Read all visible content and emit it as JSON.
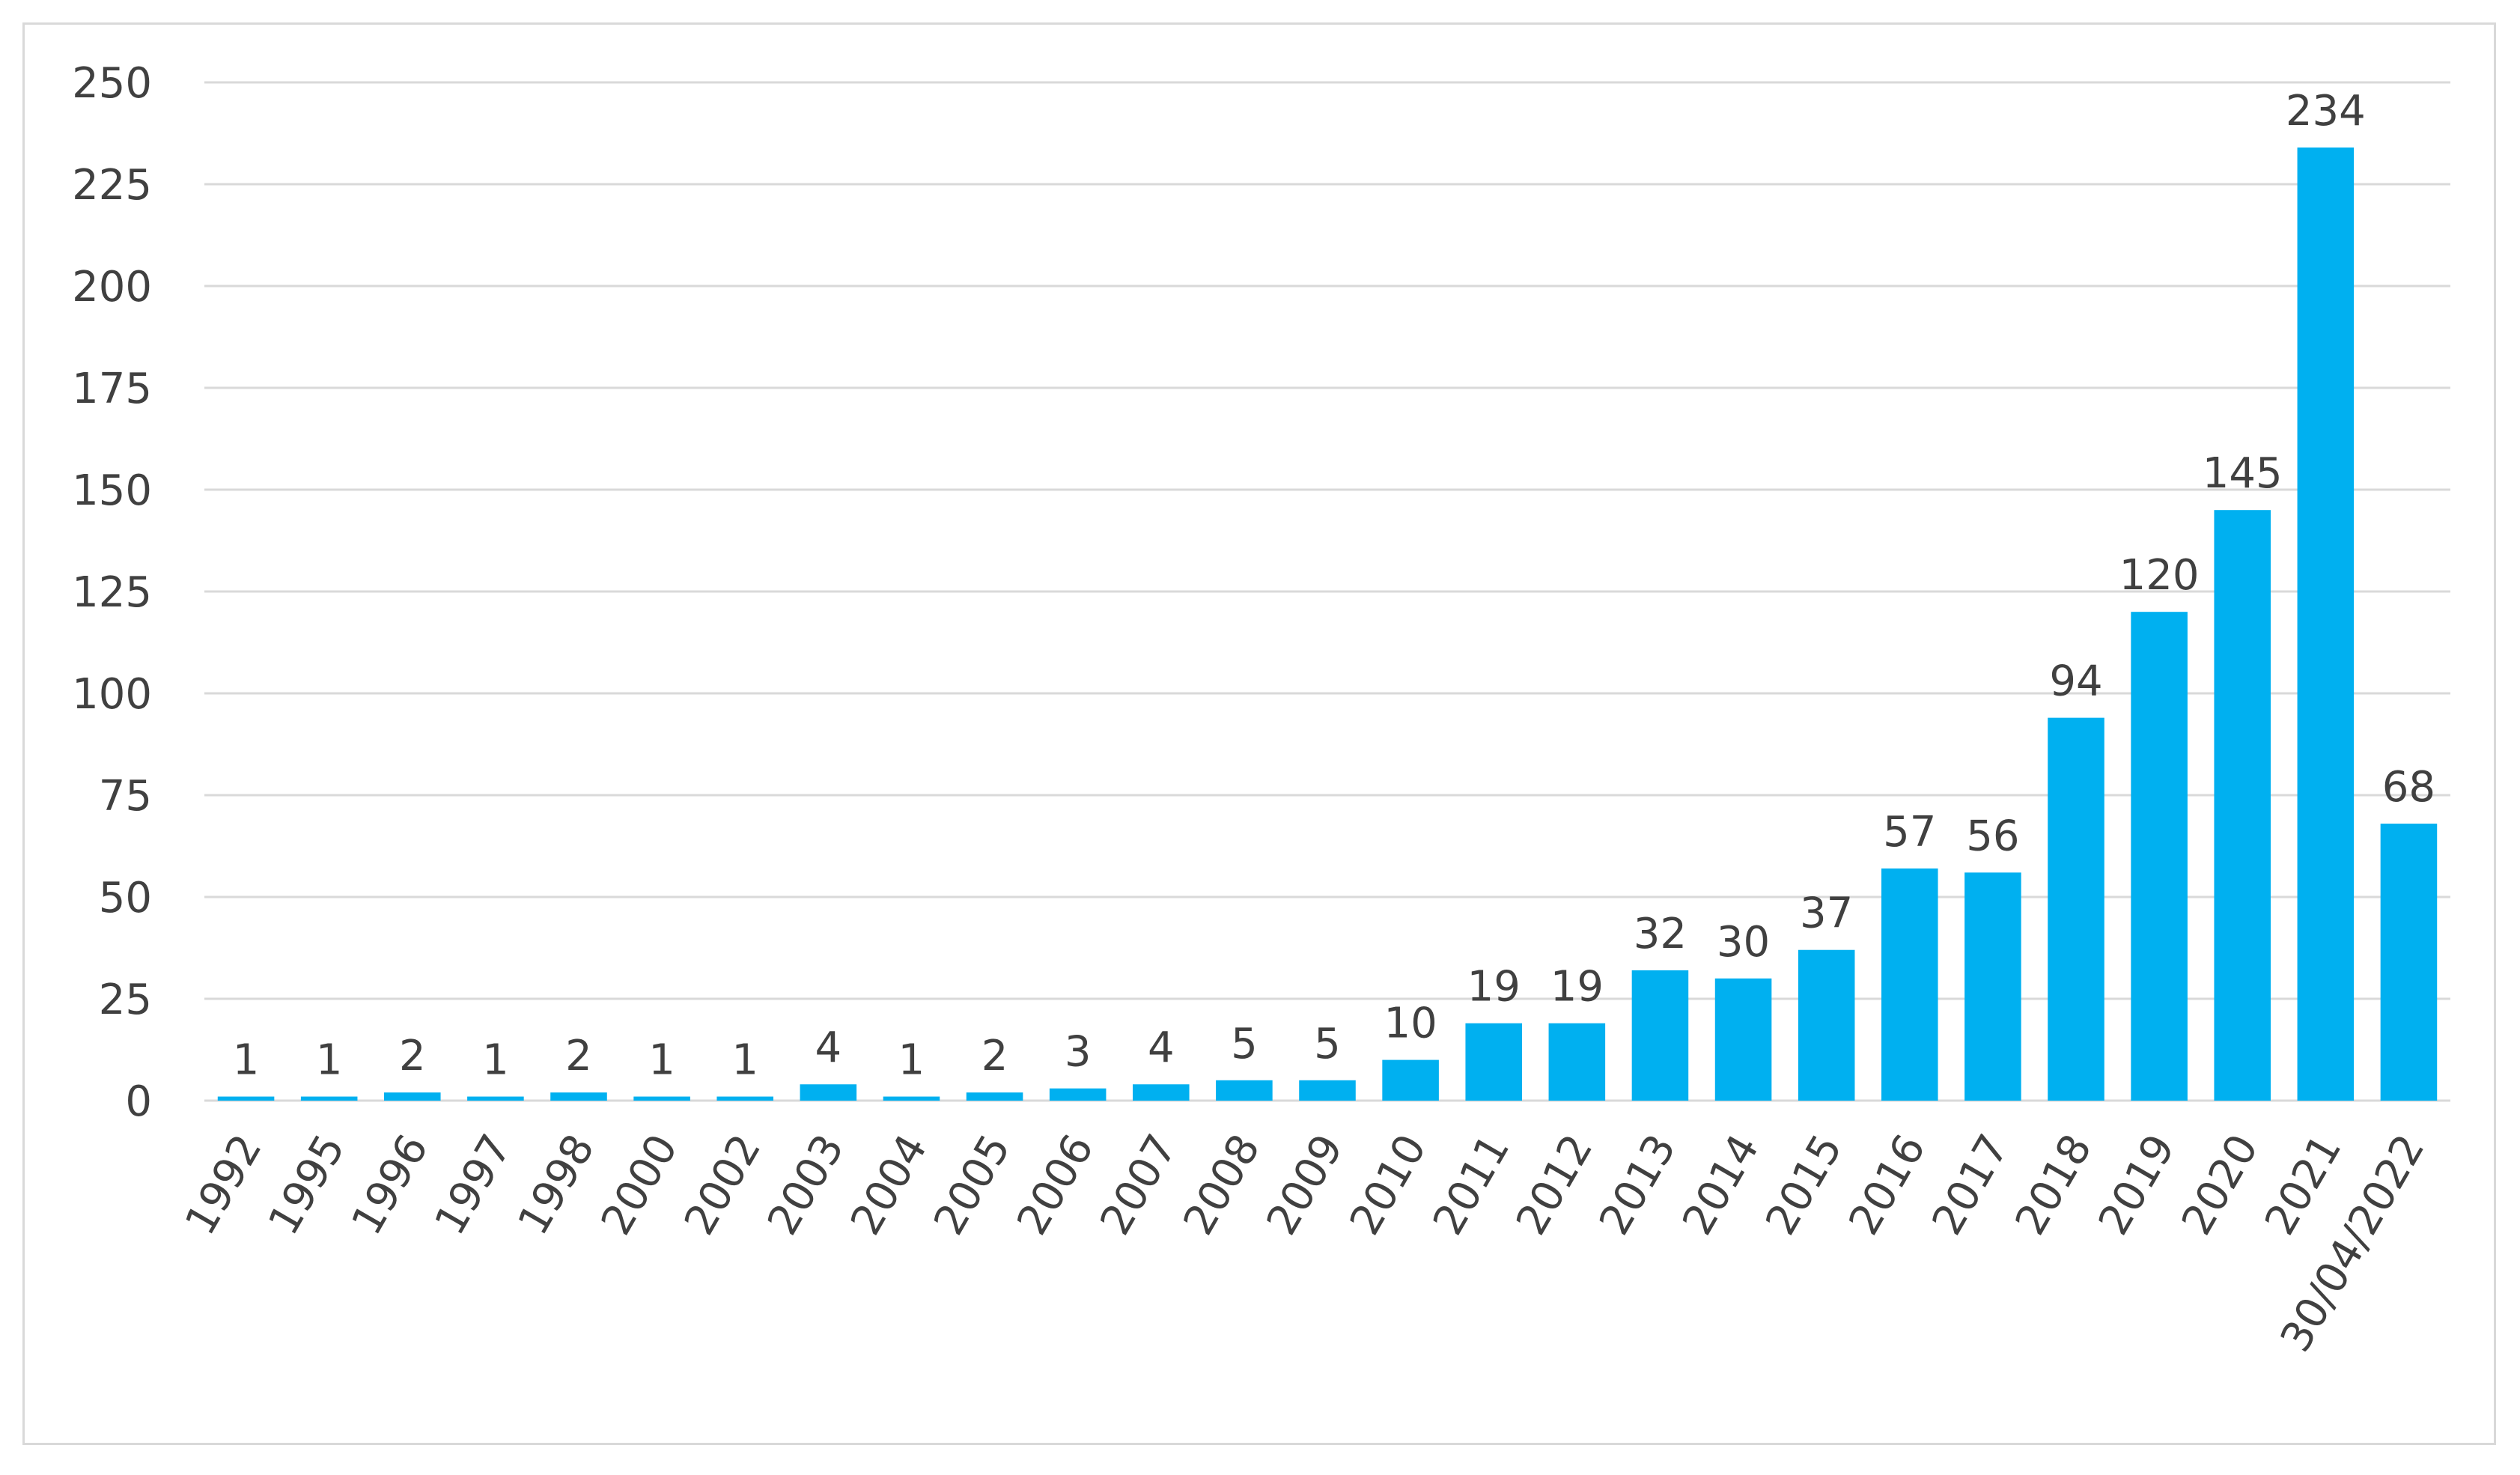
{
  "chart_data": {
    "type": "bar",
    "title": "",
    "xlabel": "",
    "ylabel": "",
    "categories": [
      "1992",
      "1995",
      "1996",
      "1997",
      "1998",
      "2000",
      "2002",
      "2003",
      "2004",
      "2005",
      "2006",
      "2007",
      "2008",
      "2009",
      "2010",
      "2011",
      "2012",
      "2013",
      "2014",
      "2015",
      "2016",
      "2017",
      "2018",
      "2019",
      "2020",
      "2021",
      "30/04/2022"
    ],
    "values": [
      1,
      1,
      2,
      1,
      2,
      1,
      1,
      4,
      1,
      2,
      3,
      4,
      5,
      5,
      10,
      19,
      19,
      32,
      30,
      37,
      57,
      56,
      94,
      120,
      145,
      234,
      68
    ],
    "ylim": [
      0,
      250
    ],
    "yticks": [
      0,
      25,
      50,
      75,
      100,
      125,
      150,
      175,
      200,
      225,
      250
    ],
    "grid": true,
    "legend": "none",
    "bar_color": "#00b0f0",
    "gridline_color": "#d9d9d9",
    "text_color": "#404040",
    "data_labels": true
  }
}
